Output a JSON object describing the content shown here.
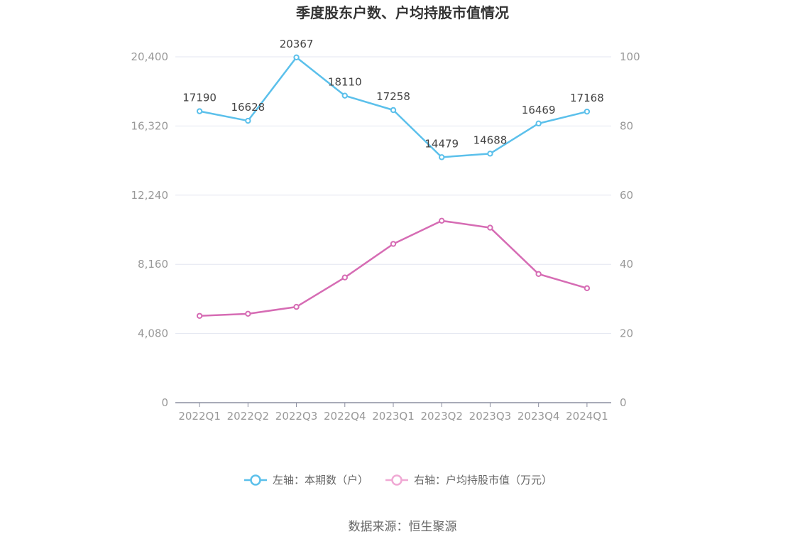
{
  "chart_data": {
    "type": "line",
    "title": "季度股东户数、户均持股市值情况",
    "categories": [
      "2022Q1",
      "2022Q2",
      "2022Q3",
      "2022Q4",
      "2023Q1",
      "2023Q2",
      "2023Q3",
      "2023Q4",
      "2024Q1"
    ],
    "y_left": {
      "ticks": [
        "0",
        "4,080",
        "8,160",
        "12,240",
        "16,320",
        "20,400"
      ],
      "ylim": [
        0,
        20400
      ]
    },
    "y_right": {
      "ticks": [
        "0",
        "20",
        "40",
        "60",
        "80",
        "100"
      ],
      "ylim": [
        0,
        100
      ]
    },
    "series": [
      {
        "name": "左轴：本期数（户）",
        "axis": "left",
        "color": "#5bc0eb",
        "values": [
          17190,
          16628,
          20367,
          18110,
          17258,
          14479,
          14688,
          16469,
          17168
        ],
        "labels": [
          "17190",
          "16628",
          "20367",
          "18110",
          "17258",
          "14479",
          "14688",
          "16469",
          "17168"
        ]
      },
      {
        "name": "右轴：户均持股市值（万元）",
        "axis": "right",
        "color": "#d66cb4",
        "legend_color": "#f0a9d4",
        "values": [
          25.1,
          25.7,
          27.7,
          36.2,
          45.9,
          52.6,
          50.6,
          37.2,
          33.1
        ]
      }
    ],
    "grid": true,
    "legend_position": "bottom"
  },
  "source": "数据来源：恒生聚源"
}
